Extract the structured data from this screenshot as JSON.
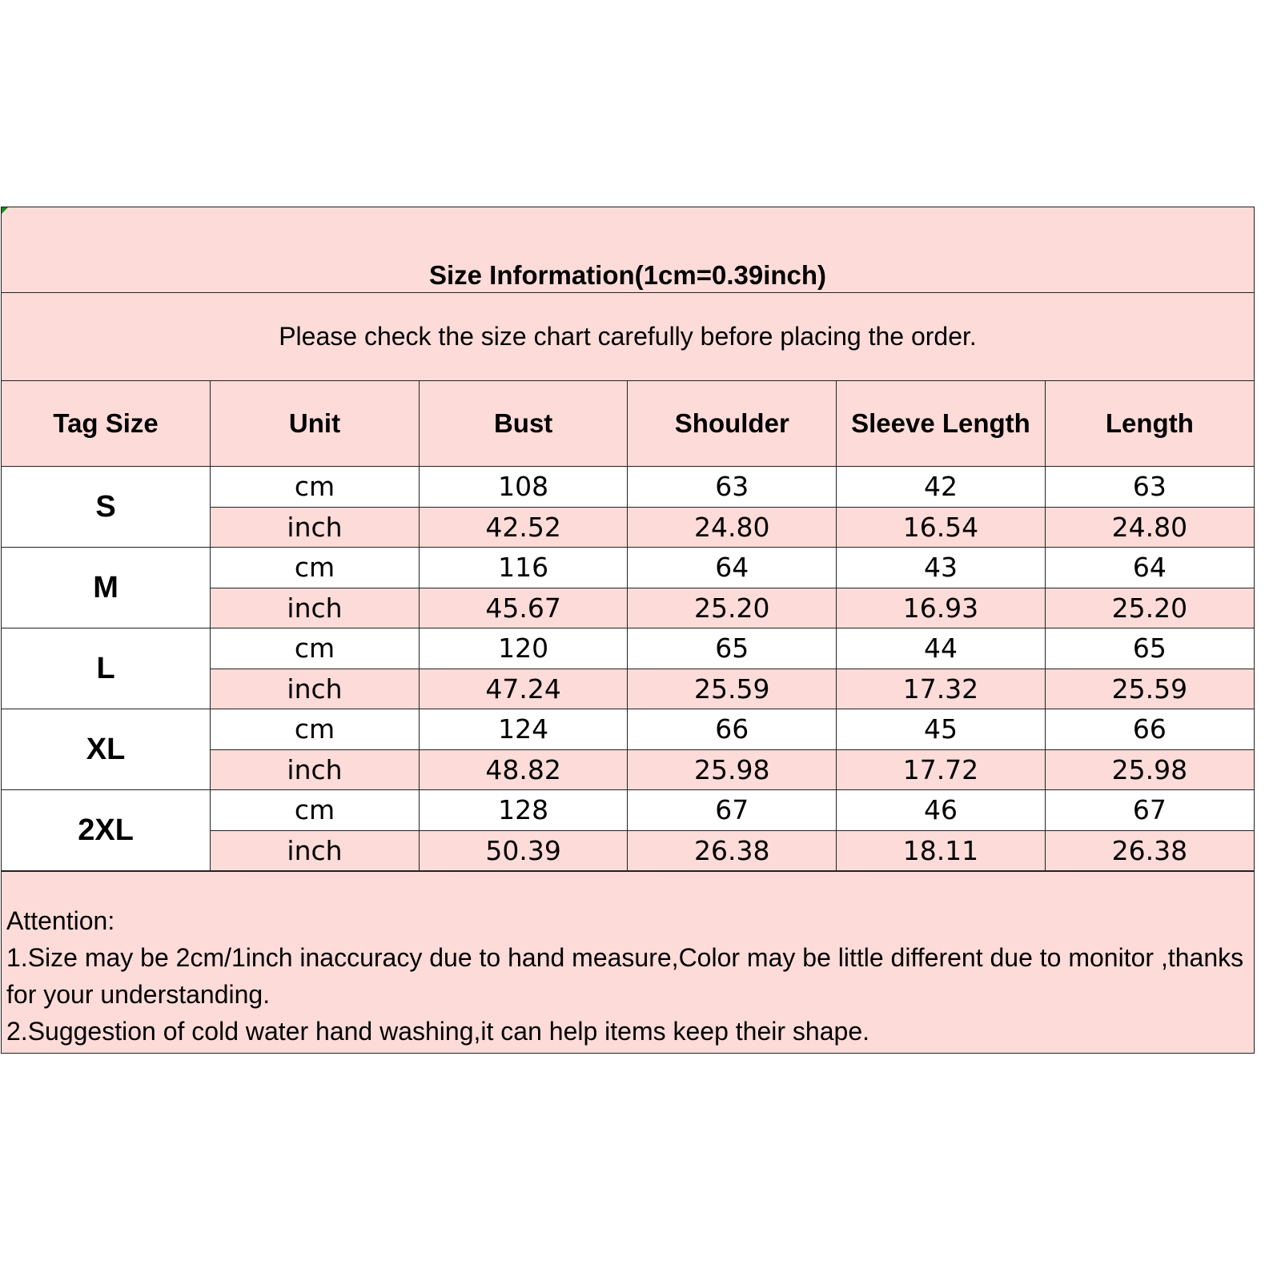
{
  "title": "Size Information(1cm=0.39inch)",
  "subtitle": "Please check the size chart carefully before placing the order.",
  "colors": {
    "header_bg": "#fcdbd8",
    "border": "#222222"
  },
  "headers": [
    "Tag Size",
    "Unit",
    "Bust",
    "Shoulder",
    "Sleeve Length",
    "Length"
  ],
  "sizes": [
    {
      "tag": "S",
      "cm": {
        "unit": "cm",
        "values": [
          "108",
          "63",
          "42",
          "63"
        ]
      },
      "inch": {
        "unit": "inch",
        "values": [
          "42.52",
          "24.80",
          "16.54",
          "24.80"
        ]
      }
    },
    {
      "tag": "M",
      "cm": {
        "unit": "cm",
        "values": [
          "116",
          "64",
          "43",
          "64"
        ]
      },
      "inch": {
        "unit": "inch",
        "values": [
          "45.67",
          "25.20",
          "16.93",
          "25.20"
        ]
      }
    },
    {
      "tag": "L",
      "cm": {
        "unit": "cm",
        "values": [
          "120",
          "65",
          "44",
          "65"
        ]
      },
      "inch": {
        "unit": "inch",
        "values": [
          "47.24",
          "25.59",
          "17.32",
          "25.59"
        ]
      }
    },
    {
      "tag": "XL",
      "cm": {
        "unit": "cm",
        "values": [
          "124",
          "66",
          "45",
          "66"
        ]
      },
      "inch": {
        "unit": "inch",
        "values": [
          "48.82",
          "25.98",
          "17.72",
          "25.98"
        ]
      }
    },
    {
      "tag": "2XL",
      "cm": {
        "unit": "cm",
        "values": [
          "128",
          "67",
          "46",
          "67"
        ]
      },
      "inch": {
        "unit": "inch",
        "values": [
          "50.39",
          "26.38",
          "18.11",
          "26.38"
        ]
      }
    }
  ],
  "attention": {
    "heading": "Attention:",
    "lines": [
      "1.Size may be 2cm/1inch inaccuracy due to hand measure,Color may be little different due to monitor ,thanks for your understanding.",
      "2.Suggestion of cold water hand washing,it can help items keep their shape."
    ]
  }
}
